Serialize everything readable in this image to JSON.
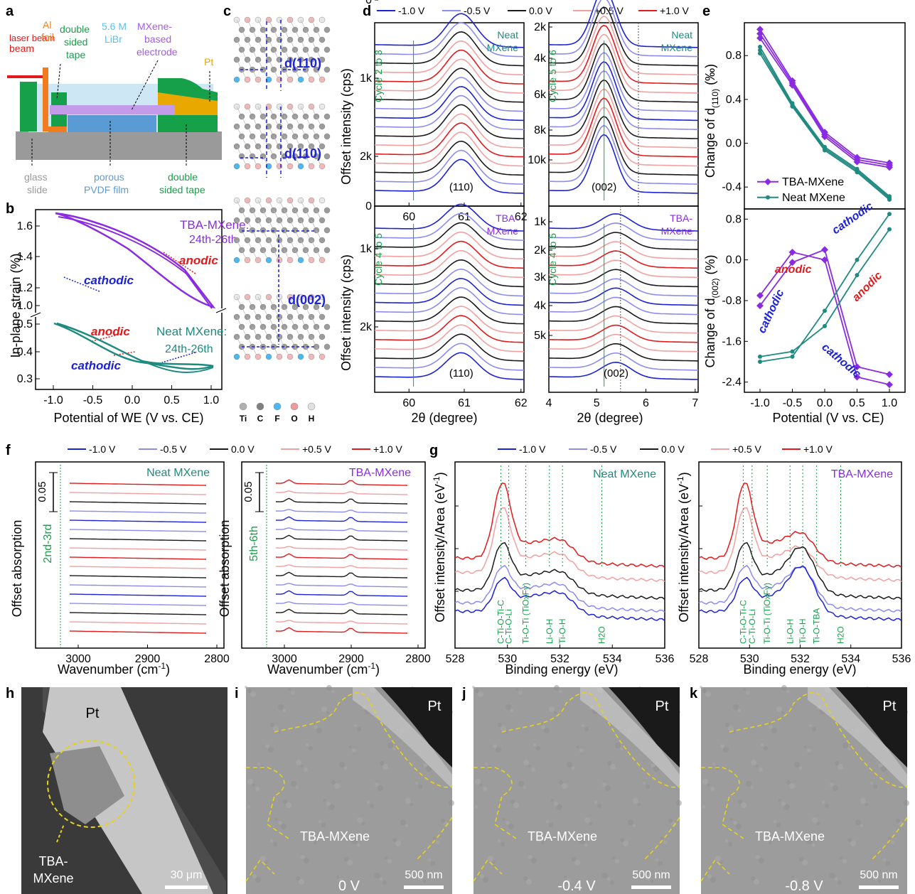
{
  "panel_letters": [
    "a",
    "b",
    "c",
    "d",
    "e",
    "f",
    "g",
    "h",
    "i",
    "j",
    "k"
  ],
  "colors": {
    "neg1": "#1c22d6",
    "neg05": "#8c8cf0",
    "zero": "#1a1a1a",
    "pos05": "#f2a0a0",
    "pos1": "#e31a1c",
    "purple": "#8a2be2",
    "teal": "#1f8a80",
    "green": "#16a04a",
    "lightblue": "#cde8f4",
    "pt": "#e8a800",
    "grey": "#9a9a9a",
    "pvdf": "#5b9bd5",
    "orange": "#f07c1e"
  },
  "legend": [
    "-1.0 V",
    "-0.5 V",
    "0.0 V",
    "+0.5 V",
    "+1.0 V"
  ],
  "panel_a": {
    "laser": "laser beam",
    "al1": "Al",
    "al2": "foil",
    "tape1": "double",
    "tape2": "sided",
    "tape3": "tape",
    "libr1": "5.6 M",
    "libr2": "LiBr",
    "mx1": "MXene-",
    "mx2": "based",
    "mx3": "electrode",
    "pt": "Pt",
    "glass1": "glass",
    "glass2": "slide",
    "pvdf1": "porous",
    "pvdf2": "PVDF film",
    "tape4": "double",
    "tape5": "sided tape"
  },
  "panel_b": {
    "ylabel": "In-plane strain (%)",
    "xlabel": "Potential of WE (V vs. CE)",
    "xticks": [
      "-1.0",
      "-0.5",
      "0.0",
      "0.5",
      "1.0"
    ],
    "yticks_top": [
      "1.6",
      "1.4",
      "1.2",
      "1.0"
    ],
    "yticks_bot": [
      "0.5",
      "0.4",
      "0.3"
    ],
    "tba": "TBA-MXene:",
    "tba_cycles": "24th-26th",
    "neat": "Neat MXene:",
    "neat_cycles": "24th-26th",
    "anodic": "anodic",
    "cathodic": "cathodic"
  },
  "panel_c": {
    "d110": "d(110)",
    "d002": "d(002)",
    "atoms": [
      "Ti",
      "C",
      "F",
      "O",
      "H"
    ]
  },
  "panel_d": {
    "ylabel": "Offset intensity (cps)",
    "xlabel": "2θ (degree)",
    "left_xticks": [
      "60",
      "61",
      "62"
    ],
    "right_xticks": [
      "4",
      "5",
      "6",
      "7"
    ],
    "q1": {
      "label1": "Neat",
      "label2": "MXene",
      "cycle": "Cycle",
      "cyc": "2 to 3",
      "peak": "(110)",
      "yticks": [
        "2k",
        "1k",
        "0"
      ]
    },
    "q2": {
      "label1": "Neat",
      "label2": "MXene",
      "cycle": "Cycle",
      "cyc": "5 to 6",
      "peak": "(002)",
      "yticks": [
        "10k",
        "8k",
        "6k",
        "4k",
        "2k"
      ]
    },
    "q3": {
      "label1": "TBA-",
      "label2": "MXene",
      "cycle": "Cycle",
      "cyc": "4 to 5",
      "peak": "(110)",
      "yticks": [
        "2k",
        "1k",
        "0"
      ]
    },
    "q4": {
      "label1": "TBA-",
      "label2": "MXene",
      "cycle": "Cycle",
      "cyc": "4 to 5",
      "peak": "(002)",
      "yticks": [
        "5k",
        "4k",
        "3k",
        "2k",
        "1k"
      ]
    }
  },
  "panel_e": {
    "xlabel": "Potential (V vs. CE)",
    "ylabel_top": "Change of d(110) (‰)",
    "ylabel_bot": "Change of d(002) (%)",
    "xticks": [
      "-1.0",
      "-0.5",
      "0.0",
      "0.5",
      "1.0"
    ],
    "yticks_top": [
      "0.8",
      "0.4",
      "0.0",
      "-0.4"
    ],
    "yticks_bot": [
      "0.8",
      "0.0",
      "-0.8",
      "-1.6",
      "-2.4"
    ],
    "legend_tba": "TBA-MXene",
    "legend_neat": "Neat MXene",
    "anodic": "anodic",
    "cathodic": "cathodic"
  },
  "panel_f": {
    "ylabel": "Offset absorption",
    "xlabel": "Wavenumber (cm-1)",
    "xticks": [
      "3000",
      "2900",
      "2800"
    ],
    "scale": "0.05",
    "left_title": "Neat MXene",
    "right_title": "TBA-MXene",
    "left_cycle": "2nd-3rd",
    "right_cycle": "5th-6th"
  },
  "panel_g": {
    "ylabel": "Offset intensity/Area (eV-1)",
    "xlabel": "Binding energy (eV)",
    "xticks": [
      "528",
      "530",
      "532",
      "534",
      "536"
    ],
    "left_title": "Neat MXene",
    "right_title": "TBA-MXene",
    "left_peaks": [
      "C-Ti-O-Ti-C",
      "C-Ti-O-Li",
      "Ti-O-Ti (TiOxFy)",
      "Li-O-H",
      "Ti-O-H",
      "H2O"
    ],
    "right_peaks": [
      "C-Ti-O-Ti-C",
      "C-Ti-O-Li",
      "Ti-O-Ti (TiOxFy)",
      "Li-O-H",
      "Ti-O-H",
      "Ti-O-TBA",
      "H2O"
    ]
  },
  "panel_h": {
    "pt": "Pt",
    "tba1": "TBA-",
    "tba2": "MXene",
    "scale": "30 μm"
  },
  "panel_i": {
    "pt": "Pt",
    "label": "TBA-MXene",
    "v": "0 V",
    "scale": "500 nm"
  },
  "panel_j": {
    "pt": "Pt",
    "label": "TBA-MXene",
    "v": "-0.4 V",
    "scale": "500 nm"
  },
  "panel_k": {
    "pt": "Pt",
    "label": "TBA-MXene",
    "v": "-0.8 V",
    "scale": "500 nm"
  },
  "chart_data": [
    {
      "type": "line",
      "title": "",
      "xlabel": "Potential (V vs. CE)",
      "ylabel": "Change of d(110) (‰)",
      "x": [
        -1.0,
        -0.5,
        0.0,
        0.5,
        1.0
      ],
      "series": [
        {
          "name": "TBA-MXene",
          "values": [
            1.0,
            0.55,
            0.08,
            -0.15,
            -0.2
          ]
        },
        {
          "name": "Neat MXene",
          "values": [
            0.85,
            0.35,
            -0.05,
            -0.25,
            -0.5
          ]
        }
      ]
    },
    {
      "type": "line",
      "title": "",
      "xlabel": "Potential (V vs. CE)",
      "ylabel": "Change of d(002) (%)",
      "x": [
        -1.0,
        -0.5,
        0.0,
        0.5,
        1.0
      ],
      "series": [
        {
          "name": "TBA-MXene",
          "values": [
            -0.7,
            0.15,
            0.0,
            -2.3,
            -2.45
          ]
        },
        {
          "name": "Neat MXene",
          "values": [
            -2.0,
            -1.9,
            -1.0,
            0.0,
            0.9
          ]
        }
      ]
    }
  ]
}
